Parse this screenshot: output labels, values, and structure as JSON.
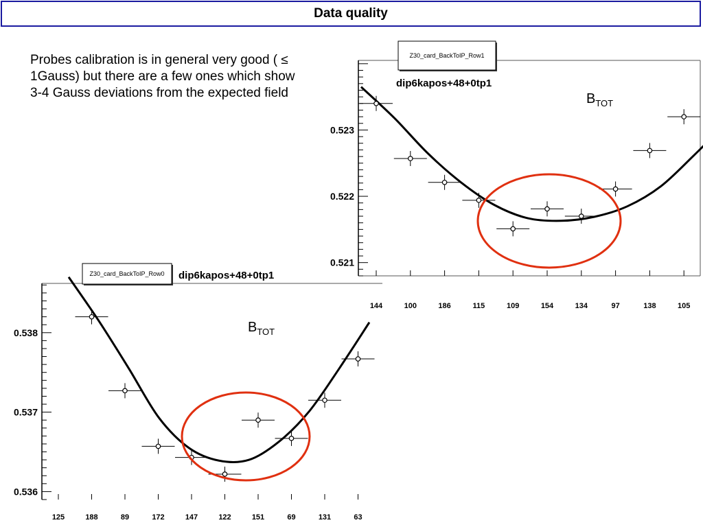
{
  "header": {
    "title": "Data quality"
  },
  "description": "Probes calibration is in general very good ( ≤ 1Gauss) but there are a few ones which show 3-4 Gauss deviations from the expected field",
  "colors": {
    "curve": "#000000",
    "highlight": "#e03010",
    "frame": "#1a1aa0"
  },
  "chart_data": [
    {
      "type": "scatter",
      "stat_box": "Z30_card_BackToIP_Row1",
      "fit_label": "dip6kapos+48+0tp1",
      "annotation": {
        "main": "B",
        "sub": "TOT"
      },
      "categories": [
        "144",
        "100",
        "186",
        "115",
        "109",
        "154",
        "134",
        "97",
        "138",
        "105"
      ],
      "values": [
        0.5234,
        0.52257,
        0.52221,
        0.52194,
        0.52151,
        0.52181,
        0.5217,
        0.52211,
        0.52269,
        0.5232
      ],
      "fit_curve": [
        0.52365,
        0.52318,
        0.52265,
        0.52221,
        0.52187,
        0.52167,
        0.52163,
        0.52169,
        0.52185,
        0.52215,
        0.52262,
        0.52312
      ],
      "yticks": [
        "0.523",
        "0.522",
        "0.521"
      ],
      "ylim": [
        0.5208,
        0.52405
      ],
      "grid": false,
      "highlight": "ellipse around categories 115 to 134"
    },
    {
      "type": "scatter",
      "stat_box": "Z30_card_BackToIP_Row0",
      "fit_label": "dip6kapos+48+0tp1",
      "annotation": {
        "main": "B",
        "sub": "TOT"
      },
      "categories": [
        "125",
        "188",
        "89",
        "172",
        "147",
        "122",
        "151",
        "69",
        "131",
        "63"
      ],
      "values": [
        null,
        0.5382,
        0.53727,
        0.53657,
        0.53643,
        0.53622,
        0.5369,
        0.53667,
        0.53715,
        0.53767
      ],
      "fit_curve": [
        0.5387,
        0.53815,
        0.53755,
        0.53693,
        0.53655,
        0.53639,
        0.5364,
        0.53663,
        0.53701,
        0.53755,
        0.53813
      ],
      "yticks": [
        "0.538",
        "0.537",
        "0.536"
      ],
      "ylim": [
        0.5359,
        0.53862
      ],
      "grid": false,
      "highlight": "ellipse around categories 147 to 69"
    }
  ]
}
